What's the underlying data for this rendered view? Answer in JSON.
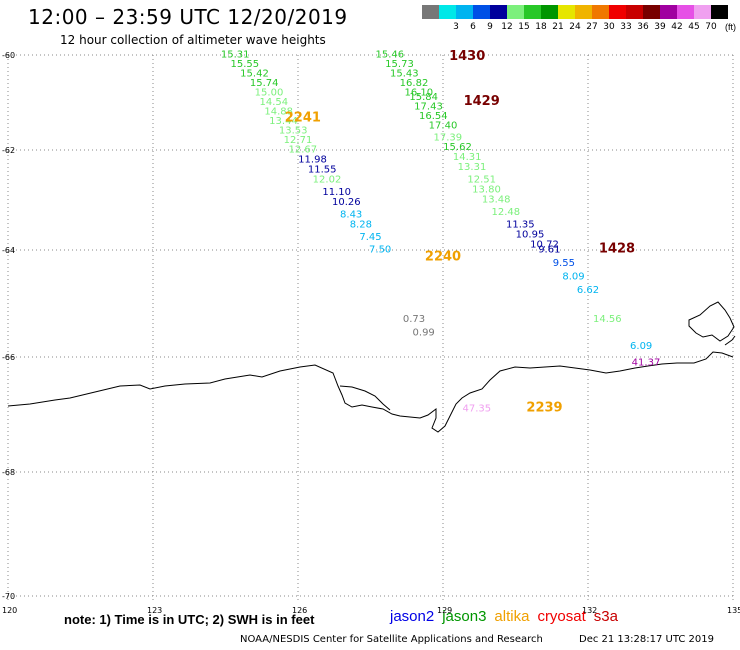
{
  "header": {
    "title": "12:00  –  23:59 UTC 12/20/2019",
    "subtitle": "12 hour collection of altimeter wave heights"
  },
  "legend": {
    "unit": "(ft)",
    "swatches": [
      {
        "label": "",
        "color": "#777777"
      },
      {
        "label": "3",
        "color": "#00e8e8"
      },
      {
        "label": "6",
        "color": "#00b4f0"
      },
      {
        "label": "9",
        "color": "#0050e6"
      },
      {
        "label": "12",
        "color": "#00009c"
      },
      {
        "label": "15",
        "color": "#7cf07c"
      },
      {
        "label": "18",
        "color": "#28c828"
      },
      {
        "label": "21",
        "color": "#009600"
      },
      {
        "label": "24",
        "color": "#e6e600"
      },
      {
        "label": "27",
        "color": "#f0b400"
      },
      {
        "label": "30",
        "color": "#f07800"
      },
      {
        "label": "33",
        "color": "#f00000"
      },
      {
        "label": "36",
        "color": "#c80000"
      },
      {
        "label": "39",
        "color": "#780000"
      },
      {
        "label": "42",
        "color": "#a000a0"
      },
      {
        "label": "45",
        "color": "#e650e6"
      },
      {
        "label": "70",
        "color": "#f0a0f0"
      },
      {
        "label": "",
        "color": "#000000"
      }
    ]
  },
  "map": {
    "lat_labels": [
      {
        "label": "-60",
        "lat": -60
      },
      {
        "label": "-62",
        "lat": -62
      },
      {
        "label": "-64",
        "lat": -64
      },
      {
        "label": "-66",
        "lat": -66
      },
      {
        "label": "-68",
        "lat": -68
      },
      {
        "label": "-70",
        "lat": -70
      }
    ],
    "lon_labels": [
      {
        "label": "120",
        "lon": 120
      },
      {
        "label": "123",
        "lon": 123
      },
      {
        "label": "126",
        "lon": 126
      },
      {
        "label": "129",
        "lon": 129
      },
      {
        "label": "132",
        "lon": 132
      },
      {
        "label": "135",
        "lon": 135
      }
    ],
    "tracks": [
      {
        "satellite": "jason3",
        "points": [
          {
            "v": "15.31",
            "lon": 124.7,
            "lat": -60.05,
            "c": "#28c828"
          },
          {
            "v": "15.55",
            "lon": 124.9,
            "lat": -60.25,
            "c": "#28c828"
          },
          {
            "v": "15.42",
            "lon": 125.1,
            "lat": -60.45,
            "c": "#28c828"
          },
          {
            "v": "15.74",
            "lon": 125.3,
            "lat": -60.65,
            "c": "#28c828"
          },
          {
            "v": "15.00",
            "lon": 125.4,
            "lat": -60.85,
            "c": "#7cf07c"
          },
          {
            "v": "14.54",
            "lon": 125.5,
            "lat": -61.05,
            "c": "#7cf07c"
          },
          {
            "v": "14.88",
            "lon": 125.6,
            "lat": -61.25,
            "c": "#7cf07c"
          },
          {
            "v": "13.44",
            "lon": 125.7,
            "lat": -61.45,
            "c": "#7cf07c"
          },
          {
            "v": "13.53",
            "lon": 125.9,
            "lat": -61.65,
            "c": "#7cf07c"
          },
          {
            "v": "12.71",
            "lon": 126.0,
            "lat": -61.85,
            "c": "#7cf07c"
          },
          {
            "v": "12.67",
            "lon": 126.1,
            "lat": -62.05,
            "c": "#7cf07c"
          },
          {
            "v": "11.98",
            "lon": 126.3,
            "lat": -62.25,
            "c": "#00009c"
          },
          {
            "v": "11.55",
            "lon": 126.5,
            "lat": -62.45,
            "c": "#00009c"
          },
          {
            "v": "12.02",
            "lon": 126.6,
            "lat": -62.65,
            "c": "#7cf07c"
          },
          {
            "v": "11.10",
            "lon": 126.8,
            "lat": -62.9,
            "c": "#00009c"
          },
          {
            "v": "10.26",
            "lon": 127.0,
            "lat": -63.1,
            "c": "#00009c"
          },
          {
            "v": "8.43",
            "lon": 127.1,
            "lat": -63.35,
            "c": "#00b4f0"
          },
          {
            "v": "8.28",
            "lon": 127.3,
            "lat": -63.55,
            "c": "#00b4f0"
          },
          {
            "v": "7.45",
            "lon": 127.5,
            "lat": -63.8,
            "c": "#00b4f0"
          },
          {
            "v": "7.50",
            "lon": 127.7,
            "lat": -64.05,
            "c": "#00b4f0"
          }
        ]
      },
      {
        "satellite": "jason3",
        "points": [
          {
            "v": "15.46",
            "lon": 127.9,
            "lat": -60.05,
            "c": "#28c828"
          },
          {
            "v": "15.73",
            "lon": 128.1,
            "lat": -60.25,
            "c": "#28c828"
          },
          {
            "v": "15.43",
            "lon": 128.2,
            "lat": -60.45,
            "c": "#28c828"
          },
          {
            "v": "16.82",
            "lon": 128.4,
            "lat": -60.65,
            "c": "#28c828"
          },
          {
            "v": "16.10",
            "lon": 128.5,
            "lat": -60.85,
            "c": "#28c828"
          },
          {
            "v": "15.84",
            "lon": 128.6,
            "lat": -60.95,
            "c": "#28c828"
          },
          {
            "v": "17.43",
            "lon": 128.7,
            "lat": -61.15,
            "c": "#28c828"
          },
          {
            "v": "16.54",
            "lon": 128.8,
            "lat": -61.35,
            "c": "#28c828"
          },
          {
            "v": "17.40",
            "lon": 129.0,
            "lat": -61.55,
            "c": "#28c828"
          },
          {
            "v": "17.39",
            "lon": 129.1,
            "lat": -61.8,
            "c": "#7cf07c"
          },
          {
            "v": "15.62",
            "lon": 129.3,
            "lat": -62.0,
            "c": "#28c828"
          },
          {
            "v": "14.31",
            "lon": 129.5,
            "lat": -62.2,
            "c": "#7cf07c"
          },
          {
            "v": "13.31",
            "lon": 129.6,
            "lat": -62.4,
            "c": "#7cf07c"
          },
          {
            "v": "12.51",
            "lon": 129.8,
            "lat": -62.65,
            "c": "#7cf07c"
          },
          {
            "v": "13.80",
            "lon": 129.9,
            "lat": -62.85,
            "c": "#7cf07c"
          },
          {
            "v": "13.48",
            "lon": 130.1,
            "lat": -63.05,
            "c": "#7cf07c"
          },
          {
            "v": "12.48",
            "lon": 130.3,
            "lat": -63.3,
            "c": "#7cf07c"
          },
          {
            "v": "11.35",
            "lon": 130.6,
            "lat": -63.55,
            "c": "#00009c"
          },
          {
            "v": "10.95",
            "lon": 130.8,
            "lat": -63.75,
            "c": "#00009c"
          },
          {
            "v": "10.72",
            "lon": 131.1,
            "lat": -63.95,
            "c": "#00009c"
          },
          {
            "v": "9.61",
            "lon": 131.2,
            "lat": -64.05,
            "c": "#00009c"
          },
          {
            "v": "9.55",
            "lon": 131.5,
            "lat": -64.3,
            "c": "#0050e6"
          },
          {
            "v": "8.09",
            "lon": 131.7,
            "lat": -64.55,
            "c": "#00b4f0"
          },
          {
            "v": "6.62",
            "lon": 132.0,
            "lat": -64.8,
            "c": "#00b4f0"
          }
        ]
      },
      {
        "satellite": "jason3",
        "points": [
          {
            "v": "14.56",
            "lon": 132.4,
            "lat": -65.35,
            "c": "#7cf07c"
          }
        ]
      },
      {
        "satellite": "jason3",
        "points": [
          {
            "v": "6.09",
            "lon": 133.1,
            "lat": -65.85,
            "c": "#00b4f0"
          }
        ]
      },
      {
        "satellite": "s3a",
        "points": [
          {
            "v": "41.37",
            "lon": 133.2,
            "lat": -66.15,
            "c": "#a000a0"
          }
        ]
      },
      {
        "satellite": "none",
        "points": [
          {
            "v": "0.73",
            "lon": 128.4,
            "lat": -65.35,
            "c": "#777777"
          },
          {
            "v": "0.99",
            "lon": 128.6,
            "lat": -65.6,
            "c": "#777777"
          }
        ]
      },
      {
        "satellite": "s3a",
        "points": [
          {
            "v": "47.35",
            "lon": 129.7,
            "lat": -66.95,
            "c": "#f0a0f0"
          }
        ]
      }
    ],
    "passes": [
      {
        "label": "1430",
        "lon": 129.5,
        "lat": -60.1,
        "c": "#780000"
      },
      {
        "label": "1429",
        "lon": 129.8,
        "lat": -61.05,
        "c": "#780000"
      },
      {
        "label": "2241",
        "lon": 126.1,
        "lat": -61.4,
        "c": "#f0a000"
      },
      {
        "label": "2240",
        "lon": 129.0,
        "lat": -64.2,
        "c": "#f0a000"
      },
      {
        "label": "1428",
        "lon": 132.6,
        "lat": -64.05,
        "c": "#780000"
      },
      {
        "label": "2239",
        "lon": 131.1,
        "lat": -66.95,
        "c": "#f0a000"
      }
    ]
  },
  "footer": {
    "note": "note:  1) Time is in UTC;  2) SWH is in feet",
    "satellites": [
      {
        "name": "jason2",
        "color": "#0000e6"
      },
      {
        "name": "jason3",
        "color": "#009600"
      },
      {
        "name": "altika",
        "color": "#f0a000"
      },
      {
        "name": "cryosat",
        "color": "#f00000"
      },
      {
        "name": "s3a",
        "color": "#c80000"
      }
    ],
    "credit": "NOAA/NESDIS Center for Satellite Applications and Research",
    "timestamp": "Dec 21 13:28:17 UTC 2019"
  }
}
